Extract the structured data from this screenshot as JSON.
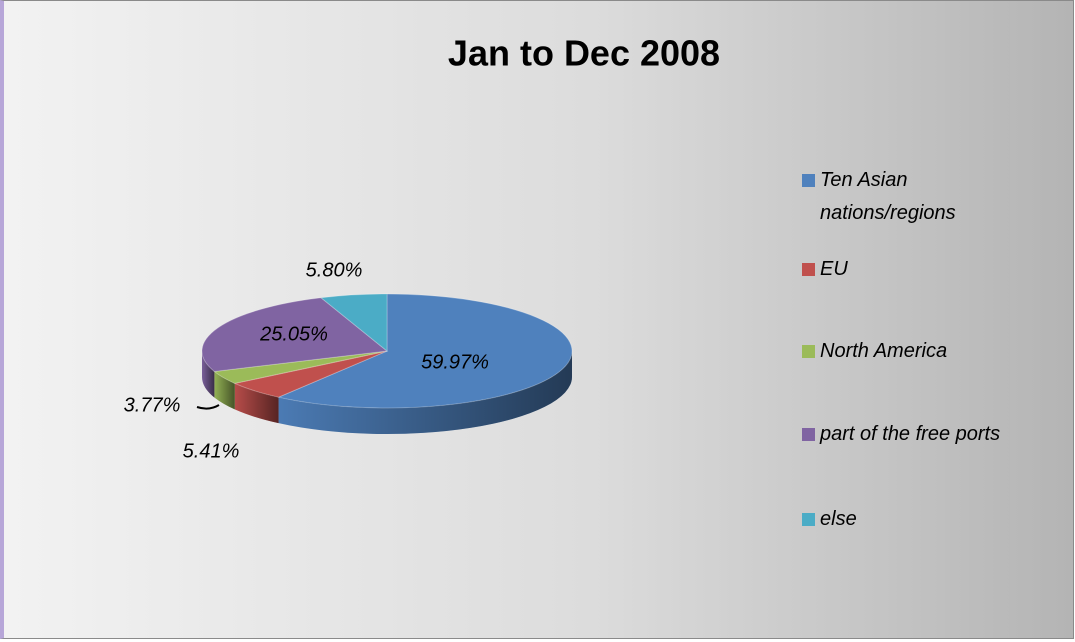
{
  "chart_data": {
    "type": "pie",
    "title": "Jan to Dec 2008",
    "categories": [
      "Ten Asian nations/regions",
      "EU",
      "North America",
      "part of the free ports",
      "else"
    ],
    "values": [
      59.97,
      5.41,
      3.77,
      25.05,
      5.8
    ],
    "value_labels": [
      "59.97%",
      "5.41%",
      "3.77%",
      "25.05%",
      "5.80%"
    ],
    "colors": [
      "#4f81bd",
      "#c0504d",
      "#9bbb59",
      "#8064a2",
      "#4bacc6"
    ],
    "legend": "right"
  }
}
